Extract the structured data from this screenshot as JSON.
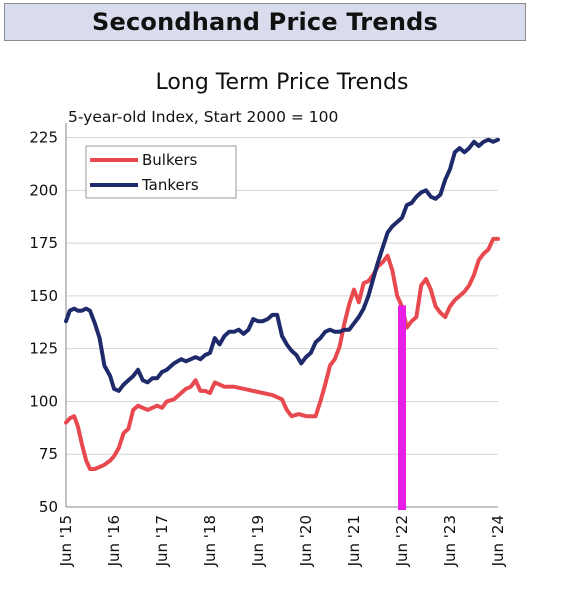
{
  "header": {
    "title": "Secondhand Price Trends"
  },
  "chart_data": {
    "type": "line",
    "title": "Long Term Price Trends",
    "subtitle": "5-year-old Index, Start 2000 = 100",
    "xlabel": "",
    "ylabel": "",
    "x_tick_labels": [
      "Jun '15",
      "Jun '16",
      "Jun '17",
      "Jun '18",
      "Jun '19",
      "Jun '20",
      "Jun '21",
      "Jun '22",
      "Jun '23",
      "Jun '24"
    ],
    "y_ticks": [
      "50",
      "75",
      "100",
      "125",
      "150",
      "175",
      "200",
      "225"
    ],
    "ylim": [
      50,
      230
    ],
    "xlim": [
      2015.5,
      2024.5
    ],
    "grid": "horizontal",
    "legend_position": "top-left",
    "marker": {
      "x": 2022.5,
      "color": "#e91ee6"
    },
    "series": [
      {
        "name": "Bulkers",
        "color": "#e8494f",
        "x": [
          2015.5,
          2015.58,
          2015.67,
          2015.75,
          2015.83,
          2015.92,
          2016.0,
          2016.1,
          2016.2,
          2016.3,
          2016.42,
          2016.5,
          2016.6,
          2016.7,
          2016.8,
          2016.9,
          2017.0,
          2017.1,
          2017.2,
          2017.3,
          2017.4,
          2017.5,
          2017.6,
          2017.75,
          2017.9,
          2018.0,
          2018.1,
          2018.2,
          2018.3,
          2018.4,
          2018.5,
          2018.6,
          2018.7,
          2018.8,
          2018.9,
          2019.0,
          2019.2,
          2019.4,
          2019.6,
          2019.8,
          2020.0,
          2020.1,
          2020.2,
          2020.35,
          2020.5,
          2020.6,
          2020.7,
          2020.8,
          2020.9,
          2021.0,
          2021.1,
          2021.2,
          2021.3,
          2021.4,
          2021.5,
          2021.6,
          2021.7,
          2021.8,
          2021.9,
          2022.0,
          2022.1,
          2022.2,
          2022.3,
          2022.4,
          2022.5,
          2022.6,
          2022.7,
          2022.8,
          2022.9,
          2023.0,
          2023.1,
          2023.2,
          2023.3,
          2023.4,
          2023.5,
          2023.6,
          2023.7,
          2023.8,
          2023.9,
          2024.0,
          2024.1,
          2024.2,
          2024.3,
          2024.4,
          2024.5
        ],
        "values": [
          90,
          92,
          93,
          88,
          80,
          72,
          68,
          68,
          69,
          70,
          72,
          74,
          78,
          85,
          87,
          96,
          98,
          97,
          96,
          97,
          98,
          97,
          100,
          101,
          104,
          106,
          107,
          110,
          105,
          105,
          104,
          109,
          108,
          107,
          107,
          107,
          106,
          105,
          104,
          103,
          101,
          96,
          93,
          94,
          93,
          93,
          93,
          100,
          108,
          117,
          120,
          126,
          137,
          146,
          153,
          147,
          156,
          157,
          160,
          164,
          166,
          169,
          162,
          150,
          145,
          135,
          138,
          140,
          155,
          158,
          153,
          145,
          142,
          140,
          145,
          148,
          150,
          152,
          155,
          160,
          167,
          170,
          172,
          177,
          177
        ]
      },
      {
        "name": "Tankers",
        "color": "#1f2a6b",
        "x": [
          2015.5,
          2015.58,
          2015.67,
          2015.75,
          2015.83,
          2015.92,
          2016.0,
          2016.1,
          2016.2,
          2016.3,
          2016.42,
          2016.5,
          2016.6,
          2016.7,
          2016.8,
          2016.9,
          2017.0,
          2017.1,
          2017.2,
          2017.3,
          2017.4,
          2017.5,
          2017.6,
          2017.75,
          2017.9,
          2018.0,
          2018.1,
          2018.2,
          2018.3,
          2018.4,
          2018.5,
          2018.6,
          2018.7,
          2018.8,
          2018.9,
          2019.0,
          2019.1,
          2019.2,
          2019.3,
          2019.4,
          2019.5,
          2019.6,
          2019.7,
          2019.8,
          2019.9,
          2020.0,
          2020.1,
          2020.2,
          2020.3,
          2020.4,
          2020.5,
          2020.6,
          2020.7,
          2020.8,
          2020.9,
          2021.0,
          2021.1,
          2021.2,
          2021.3,
          2021.4,
          2021.5,
          2021.6,
          2021.7,
          2021.8,
          2021.9,
          2022.0,
          2022.1,
          2022.2,
          2022.3,
          2022.4,
          2022.5,
          2022.6,
          2022.7,
          2022.8,
          2022.9,
          2023.0,
          2023.1,
          2023.2,
          2023.3,
          2023.4,
          2023.5,
          2023.6,
          2023.7,
          2023.8,
          2023.9,
          2024.0,
          2024.1,
          2024.2,
          2024.3,
          2024.4,
          2024.5
        ],
        "values": [
          138,
          143,
          144,
          143,
          143,
          144,
          143,
          137,
          130,
          117,
          112,
          106,
          105,
          108,
          110,
          112,
          115,
          110,
          109,
          111,
          111,
          114,
          115,
          118,
          120,
          119,
          120,
          121,
          120,
          122,
          123,
          130,
          127,
          131,
          133,
          133,
          134,
          132,
          134,
          139,
          138,
          138,
          139,
          141,
          141,
          131,
          127,
          124,
          122,
          118,
          121,
          123,
          128,
          130,
          133,
          134,
          133,
          133,
          134,
          134,
          137,
          140,
          144,
          150,
          158,
          166,
          173,
          180,
          183,
          185,
          187,
          193,
          194,
          197,
          199,
          200,
          197,
          196,
          198,
          205,
          210,
          218,
          220,
          218,
          220,
          223,
          221,
          223,
          224,
          223,
          224
        ]
      }
    ]
  }
}
